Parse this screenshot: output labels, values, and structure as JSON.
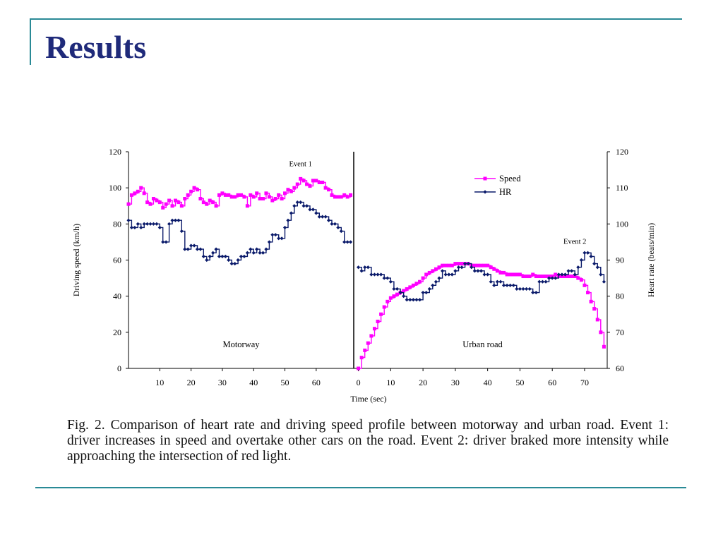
{
  "title": "Results",
  "caption": "Fig. 2. Comparison of heart rate and driving speed profile between motorway and urban road. Event 1: driver increases in speed and overtake other cars on the road. Event 2: driver braked more intensity while approaching the intersection of red light.",
  "colors": {
    "accent": "#2a8a96",
    "title": "#1f2a7a",
    "speed": "#ff00ff",
    "hr": "#0a1a6a"
  },
  "chart_data": {
    "type": "line",
    "xlabel": "Time (sec)",
    "ylabel_left": "Driving speed (km/h)",
    "ylabel_right": "Heart rate (beats/min)",
    "y_left_ticks": [
      0,
      20,
      40,
      60,
      80,
      100,
      120
    ],
    "y_right_ticks": [
      60,
      70,
      80,
      90,
      100,
      110,
      120
    ],
    "ylim_left": [
      0,
      120
    ],
    "ylim_right": [
      60,
      120
    ],
    "legend_position": "top-right",
    "panels": [
      {
        "label": "Motorway",
        "x_ticks": [
          10,
          20,
          30,
          40,
          50,
          60
        ],
        "xlim": [
          0,
          72
        ],
        "annotation": {
          "text": "Event 1",
          "x": 55,
          "y": 112
        },
        "series": [
          {
            "name": "Speed",
            "axis": "left",
            "marker": "square",
            "x": [
              0,
              1,
              2,
              3,
              4,
              5,
              6,
              7,
              8,
              9,
              10,
              11,
              12,
              13,
              14,
              15,
              16,
              17,
              18,
              19,
              20,
              21,
              22,
              23,
              24,
              25,
              26,
              27,
              28,
              29,
              30,
              31,
              32,
              33,
              34,
              35,
              36,
              37,
              38,
              39,
              40,
              41,
              42,
              43,
              44,
              45,
              46,
              47,
              48,
              49,
              50,
              51,
              52,
              53,
              54,
              55,
              56,
              57,
              58,
              59,
              60,
              61,
              62,
              63,
              64,
              65,
              66,
              67,
              68,
              69,
              70,
              71
            ],
            "values": [
              91,
              96,
              97,
              98,
              100,
              97,
              92,
              91,
              94,
              93,
              92,
              89,
              91,
              93,
              90,
              93,
              92,
              90,
              94,
              96,
              98,
              100,
              99,
              94,
              92,
              91,
              93,
              92,
              90,
              96,
              97,
              96,
              96,
              95,
              95,
              96,
              96,
              95,
              90,
              96,
              95,
              97,
              94,
              94,
              97,
              95,
              93,
              94,
              96,
              94,
              97,
              99,
              98,
              100,
              102,
              105,
              104,
              102,
              101,
              104,
              104,
              103,
              103,
              100,
              99,
              96,
              95,
              95,
              95,
              96,
              95,
              96
            ]
          },
          {
            "name": "HR",
            "axis": "right",
            "marker": "diamond",
            "x": [
              0,
              1,
              2,
              3,
              4,
              5,
              6,
              7,
              8,
              9,
              10,
              11,
              12,
              13,
              14,
              15,
              16,
              17,
              18,
              19,
              20,
              21,
              22,
              23,
              24,
              25,
              26,
              27,
              28,
              29,
              30,
              31,
              32,
              33,
              34,
              35,
              36,
              37,
              38,
              39,
              40,
              41,
              42,
              43,
              44,
              45,
              46,
              47,
              48,
              49,
              50,
              51,
              52,
              53,
              54,
              55,
              56,
              57,
              58,
              59,
              60,
              61,
              62,
              63,
              64,
              65,
              66,
              67,
              68,
              69,
              70,
              71
            ],
            "values": [
              101,
              99,
              99,
              100,
              99,
              100,
              100,
              100,
              100,
              100,
              99,
              95,
              95,
              100,
              101,
              101,
              101,
              98,
              93,
              93,
              94,
              94,
              93,
              93,
              91,
              90,
              91,
              92,
              93,
              91,
              91,
              91,
              90,
              89,
              89,
              90,
              91,
              91,
              92,
              93,
              92,
              93,
              92,
              92,
              93,
              95,
              97,
              97,
              96,
              96,
              99,
              101,
              103,
              105,
              106,
              106,
              105,
              105,
              104,
              104,
              103,
              102,
              102,
              102,
              101,
              100,
              100,
              99,
              98,
              95,
              95,
              95
            ]
          }
        ]
      },
      {
        "label": "Urban road",
        "x_ticks": [
          0,
          10,
          20,
          30,
          40,
          50,
          60,
          70
        ],
        "xlim": [
          -1,
          77
        ],
        "annotation": {
          "text": "Event 2",
          "x": 67,
          "y": 69
        },
        "series": [
          {
            "name": "Speed",
            "axis": "left",
            "marker": "square",
            "x": [
              0,
              1,
              2,
              3,
              4,
              5,
              6,
              7,
              8,
              9,
              10,
              11,
              12,
              13,
              14,
              15,
              16,
              17,
              18,
              19,
              20,
              21,
              22,
              23,
              24,
              25,
              26,
              27,
              28,
              29,
              30,
              31,
              32,
              33,
              34,
              35,
              36,
              37,
              38,
              39,
              40,
              41,
              42,
              43,
              44,
              45,
              46,
              47,
              48,
              49,
              50,
              51,
              52,
              53,
              54,
              55,
              56,
              57,
              58,
              59,
              60,
              61,
              62,
              63,
              64,
              65,
              66,
              67,
              68,
              69,
              70,
              71,
              72,
              73,
              74,
              75,
              76
            ],
            "values": [
              0,
              6,
              10,
              14,
              18,
              22,
              26,
              30,
              34,
              37,
              39,
              40,
              41,
              42,
              43,
              44,
              45,
              46,
              47,
              48,
              50,
              52,
              53,
              54,
              55,
              56,
              57,
              57,
              57,
              57,
              58,
              58,
              58,
              58,
              58,
              57,
              57,
              57,
              57,
              57,
              57,
              56,
              55,
              54,
              53,
              53,
              52,
              52,
              52,
              52,
              52,
              51,
              51,
              51,
              52,
              51,
              51,
              51,
              51,
              51,
              51,
              52,
              51,
              51,
              51,
              51,
              51,
              51,
              50,
              49,
              46,
              42,
              37,
              33,
              27,
              20,
              12
            ]
          },
          {
            "name": "HR",
            "axis": "right",
            "marker": "diamond",
            "x": [
              0,
              1,
              2,
              3,
              4,
              5,
              6,
              7,
              8,
              9,
              10,
              11,
              12,
              13,
              14,
              15,
              16,
              17,
              18,
              19,
              20,
              21,
              22,
              23,
              24,
              25,
              26,
              27,
              28,
              29,
              30,
              31,
              32,
              33,
              34,
              35,
              36,
              37,
              38,
              39,
              40,
              41,
              42,
              43,
              44,
              45,
              46,
              47,
              48,
              49,
              50,
              51,
              52,
              53,
              54,
              55,
              56,
              57,
              58,
              59,
              60,
              61,
              62,
              63,
              64,
              65,
              66,
              67,
              68,
              69,
              70,
              71,
              72,
              73,
              74,
              75,
              76
            ],
            "values": [
              88,
              87,
              88,
              88,
              86,
              86,
              86,
              86,
              85,
              85,
              84,
              82,
              82,
              81,
              80,
              79,
              79,
              79,
              79,
              79,
              81,
              81,
              82,
              83,
              84,
              85,
              87,
              86,
              86,
              86,
              87,
              88,
              88,
              89,
              89,
              88,
              87,
              87,
              87,
              86,
              86,
              84,
              83,
              84,
              84,
              83,
              83,
              83,
              83,
              82,
              82,
              82,
              82,
              82,
              81,
              81,
              84,
              84,
              84,
              85,
              85,
              85,
              86,
              86,
              86,
              87,
              87,
              86,
              88,
              90,
              92,
              92,
              91,
              89,
              88,
              86,
              84
            ]
          }
        ]
      }
    ]
  }
}
